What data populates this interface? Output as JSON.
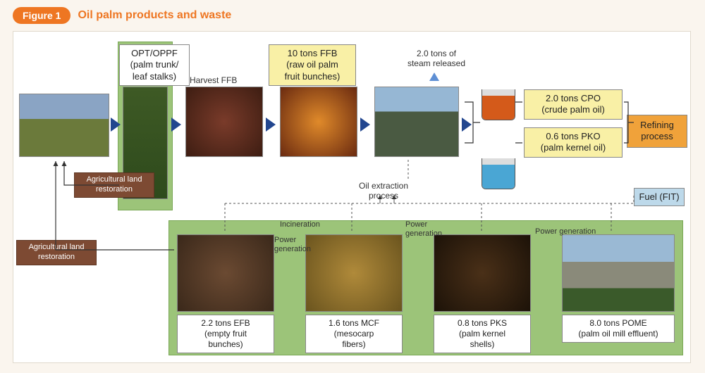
{
  "figure": {
    "badge": "Figure 1",
    "title": "Oil palm products and waste"
  },
  "colors": {
    "accent_orange": "#ee7622",
    "green_panel": "#9cc479",
    "yellow_box": "#f9f0a6",
    "brown_box": "#7d4a33",
    "orange_box": "#f0a23a",
    "blue_box": "#bdd9ea",
    "arrow_navy": "#22468f",
    "arrow_light": "#5e8fd4",
    "cpo_liquid": "#d45a1a",
    "pko_liquid": "#4aa6d4"
  },
  "labels": {
    "opt_oppf": "OPT/OPPF\n(palm trunk/\nleaf stalks)",
    "harvest_ffb": "Harvest FFB",
    "ffb_box": "10 tons FFB\n(raw oil palm\nfruit bunches)",
    "steam": "2.0 tons of\nsteam released",
    "oil_extraction": "Oil extraction\nprocess",
    "agland_rest": "Agricultural land\nrestoration",
    "cpo": "2.0 tons CPO\n(crude palm oil)",
    "pko": "0.6 tons PKO\n(palm kernel oil)",
    "refining": "Refining process",
    "fuel_fit": "Fuel (FIT)",
    "incineration": "Incineration",
    "powergen": "Power\ngeneration",
    "powergen_single": "Power generation"
  },
  "waste": {
    "efb": {
      "caption": "2.2 tons EFB\n(empty fruit\nbunches)"
    },
    "mcf": {
      "caption": "1.6 tons MCF\n(mesocarp\nfibers)"
    },
    "pks": {
      "caption": "0.8 tons PKS\n(palm kernel\nshells)"
    },
    "pome": {
      "caption": "8.0 tons POME\n(palm oil mill effluent)"
    }
  },
  "quantities": {
    "ffb_tons": 10,
    "steam_tons": 2.0,
    "cpo_tons": 2.0,
    "pko_tons": 0.6,
    "efb_tons": 2.2,
    "mcf_tons": 1.6,
    "pks_tons": 0.8,
    "pome_tons": 8.0
  },
  "photos": {
    "plantation_cleared": "photo-plantation-cleared",
    "palm_tree": "photo-palm-tree",
    "ffb_harvest": "photo-ffb-harvest",
    "fruit_cut": "photo-fruit-cut",
    "mill": "photo-mill",
    "efb": "photo-efb",
    "mcf": "photo-mcf",
    "pks": "photo-pks",
    "pome_pond": "photo-pome-pond"
  }
}
